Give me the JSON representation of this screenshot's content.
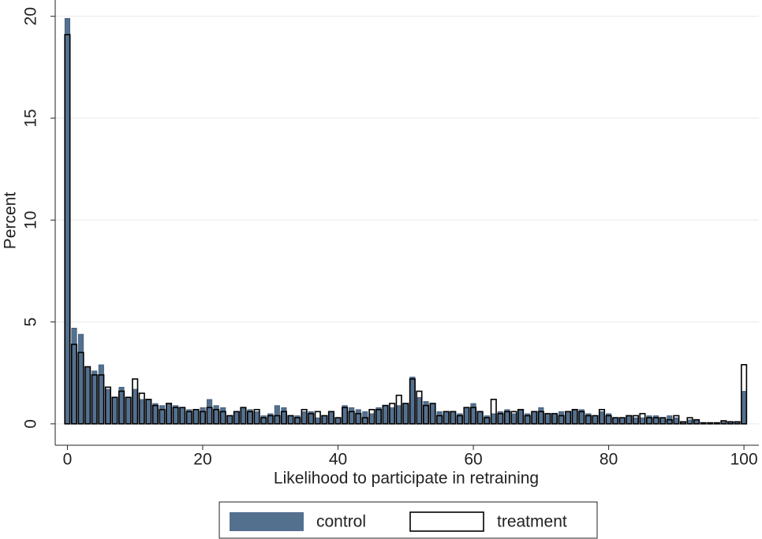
{
  "chart_data": {
    "type": "histogram",
    "x_label": "Likelihood to participate in retraining",
    "y_label": "Percent",
    "bins": [
      -0.5,
      0.5,
      1.5,
      2.5,
      3.5,
      4.5,
      5.5,
      6.5,
      7.5,
      8.5,
      9.5,
      10.5,
      11.5,
      12.5,
      13.5,
      14.5,
      15.5,
      16.5,
      17.5,
      18.5,
      19.5,
      20.5,
      21.5,
      22.5,
      23.5,
      24.5,
      25.5,
      26.5,
      27.5,
      28.5,
      29.5,
      30.5,
      31.5,
      32.5,
      33.5,
      34.5,
      35.5,
      36.5,
      37.5,
      38.5,
      39.5,
      40.5,
      41.5,
      42.5,
      43.5,
      44.5,
      45.5,
      46.5,
      47.5,
      48.5,
      49.5,
      50.5,
      51.5,
      52.5,
      53.5,
      54.5,
      55.5,
      56.5,
      57.5,
      58.5,
      59.5,
      60.5,
      61.5,
      62.5,
      63.5,
      64.5,
      65.5,
      66.5,
      67.5,
      68.5,
      69.5,
      70.5,
      71.5,
      72.5,
      73.5,
      74.5,
      75.5,
      76.5,
      77.5,
      78.5,
      79.5,
      80.5,
      81.5,
      82.5,
      83.5,
      84.5,
      85.5,
      86.5,
      87.5,
      88.5,
      89.5,
      90.5,
      91.5,
      92.5,
      93.5,
      94.5,
      95.5,
      96.5,
      97.5,
      98.5,
      99.5,
      100.5
    ],
    "series": [
      {
        "name": "control",
        "color": "#54708f",
        "values": [
          19.9,
          4.7,
          4.4,
          2.8,
          2.6,
          2.9,
          1.7,
          1.3,
          1.8,
          1.3,
          1.7,
          1.2,
          1.2,
          1.0,
          0.9,
          1.0,
          0.9,
          0.8,
          0.7,
          0.7,
          0.8,
          1.2,
          0.9,
          0.8,
          0.4,
          0.6,
          0.8,
          0.7,
          0.6,
          0.4,
          0.5,
          0.9,
          0.8,
          0.4,
          0.4,
          0.6,
          0.6,
          0.3,
          0.4,
          0.6,
          0.3,
          0.9,
          0.8,
          0.7,
          0.6,
          0.5,
          0.8,
          0.9,
          0.8,
          0.9,
          1.0,
          2.3,
          1.3,
          1.1,
          1.0,
          0.6,
          0.6,
          0.6,
          0.5,
          0.8,
          1.0,
          0.6,
          0.4,
          0.5,
          0.6,
          0.7,
          0.5,
          0.7,
          0.5,
          0.6,
          0.8,
          0.5,
          0.5,
          0.6,
          0.6,
          0.7,
          0.7,
          0.5,
          0.4,
          0.6,
          0.5,
          0.3,
          0.3,
          0.4,
          0.3,
          0.3,
          0.4,
          0.4,
          0.3,
          0.4,
          0.3,
          0.1,
          0.2,
          0.2,
          0.05,
          0.05,
          0.05,
          0.1,
          0.1,
          0.1,
          1.6
        ]
      },
      {
        "name": "treatment",
        "color": "#000000",
        "values": [
          19.1,
          3.9,
          3.5,
          2.8,
          2.4,
          2.4,
          1.8,
          1.3,
          1.6,
          1.3,
          2.2,
          1.5,
          1.2,
          0.9,
          0.7,
          1.0,
          0.8,
          0.8,
          0.6,
          0.7,
          0.6,
          0.8,
          0.7,
          0.6,
          0.4,
          0.6,
          0.8,
          0.6,
          0.7,
          0.3,
          0.4,
          0.4,
          0.6,
          0.4,
          0.3,
          0.7,
          0.5,
          0.6,
          0.4,
          0.6,
          0.3,
          0.8,
          0.6,
          0.5,
          0.3,
          0.7,
          0.7,
          0.9,
          1.0,
          1.4,
          1.0,
          2.2,
          1.6,
          0.9,
          1.0,
          0.4,
          0.6,
          0.6,
          0.4,
          0.8,
          0.8,
          0.6,
          0.3,
          1.2,
          0.5,
          0.6,
          0.6,
          0.7,
          0.4,
          0.6,
          0.6,
          0.5,
          0.5,
          0.4,
          0.6,
          0.7,
          0.6,
          0.4,
          0.4,
          0.7,
          0.4,
          0.3,
          0.3,
          0.4,
          0.4,
          0.5,
          0.3,
          0.3,
          0.3,
          0.2,
          0.4,
          0.1,
          0.3,
          0.2,
          0.05,
          0.05,
          0.05,
          0.15,
          0.1,
          0.1,
          2.9
        ]
      }
    ],
    "xlim": [
      -1.8,
      102.2
    ],
    "ylim": [
      -1.05,
      20.8
    ],
    "xticks": [
      0,
      20,
      40,
      60,
      80,
      100
    ],
    "yticks": [
      0,
      5,
      10,
      15,
      20
    ],
    "grid": true,
    "legend": "bottom"
  }
}
